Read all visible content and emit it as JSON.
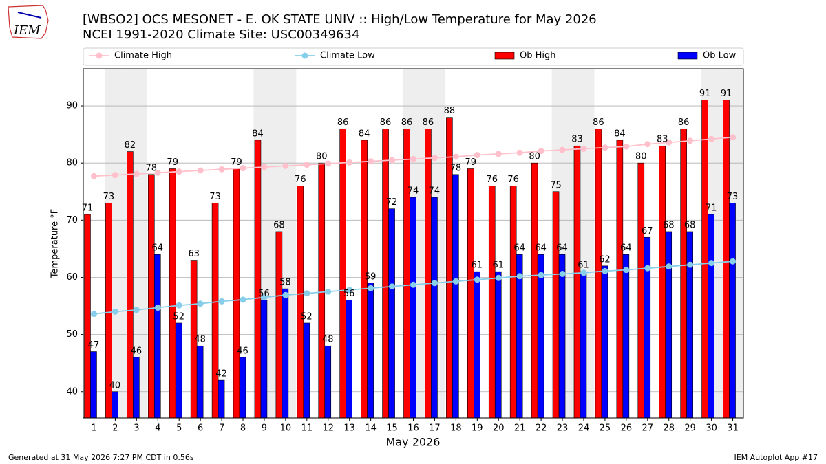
{
  "chart_data": {
    "type": "bar",
    "title": "[WBSO2] OCS MESONET - E. OK STATE UNIV :: High/Low Temperature for May 2026",
    "subtitle": "NCEI 1991-2020 Climate Site: USC00349634",
    "xlabel": "May 2026",
    "ylabel": "Temperature °F",
    "categories": [
      "1",
      "2",
      "3",
      "4",
      "5",
      "6",
      "7",
      "8",
      "9",
      "10",
      "11",
      "12",
      "13",
      "14",
      "15",
      "16",
      "17",
      "18",
      "19",
      "20",
      "21",
      "22",
      "23",
      "24",
      "25",
      "26",
      "27",
      "28",
      "29",
      "30",
      "31"
    ],
    "series": [
      {
        "name": "Climate High",
        "type": "line",
        "color": "#ffc0cb",
        "values": [
          77.7,
          77.9,
          78.1,
          78.3,
          78.5,
          78.7,
          78.9,
          79.1,
          79.3,
          79.5,
          79.7,
          79.9,
          80.1,
          80.3,
          80.5,
          80.7,
          80.9,
          81.1,
          81.4,
          81.6,
          81.8,
          82.1,
          82.3,
          82.5,
          82.7,
          82.9,
          83.3,
          83.6,
          83.9,
          84.2,
          84.5
        ]
      },
      {
        "name": "Climate Low",
        "type": "line",
        "color": "#87ceeb",
        "values": [
          53.6,
          54.0,
          54.3,
          54.7,
          55.1,
          55.4,
          55.8,
          56.1,
          56.5,
          56.9,
          57.2,
          57.5,
          57.8,
          58.1,
          58.4,
          58.7,
          59.0,
          59.3,
          59.6,
          59.9,
          60.2,
          60.4,
          60.6,
          60.8,
          61.1,
          61.3,
          61.6,
          61.9,
          62.2,
          62.5,
          62.8
        ]
      },
      {
        "name": "Ob High",
        "type": "bar",
        "color": "#ff0000",
        "values": [
          71,
          73,
          82,
          78,
          79,
          63,
          73,
          79,
          84,
          68,
          76,
          80,
          86,
          84,
          86,
          86,
          86,
          88,
          79,
          76,
          76,
          80,
          75,
          83,
          86,
          84,
          80,
          83,
          86,
          91,
          91
        ]
      },
      {
        "name": "Ob Low",
        "type": "bar",
        "color": "#0000ff",
        "values": [
          47,
          40,
          46,
          64,
          52,
          48,
          42,
          46,
          56,
          58,
          52,
          48,
          56,
          59,
          72,
          74,
          74,
          78,
          61,
          61,
          64,
          64,
          64,
          61,
          62,
          64,
          67,
          68,
          68,
          71,
          73
        ]
      }
    ],
    "shaded_days": [
      2,
      3,
      9,
      10,
      16,
      17,
      23,
      24,
      30,
      31
    ],
    "ylim": [
      35.4,
      96.5
    ],
    "yticks": [
      40,
      50,
      60,
      70,
      80,
      90
    ],
    "grid": true,
    "footer_left": "Generated at 31 May 2026 7:27 PM CDT in 0.56s",
    "footer_right": "IEM Autoplot App #17",
    "logo": "IEM"
  }
}
